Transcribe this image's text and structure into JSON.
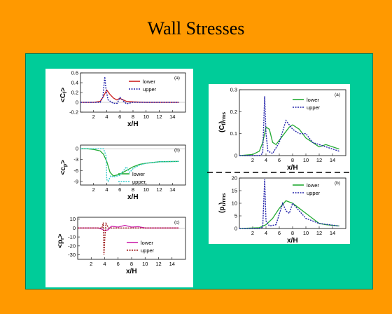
{
  "slide": {
    "title": "Wall Stresses"
  },
  "colors": {
    "background": "#FF9900",
    "panel": "#00CC99"
  },
  "chart_data": [
    {
      "id": "left-a",
      "type": "line",
      "panel_label": "(a)",
      "title": "",
      "xlabel": "x/H",
      "ylabel": "<C_f>",
      "xlim": [
        0,
        16
      ],
      "ylim": [
        -0.2,
        0.6
      ],
      "xticks": [
        "2",
        "4",
        "6",
        "8",
        "10",
        "12",
        "14"
      ],
      "yticks": [
        "-0.2",
        "0",
        "0.2",
        "0.4",
        "0.6"
      ],
      "series": [
        {
          "name": "lower",
          "color": "#cc2222",
          "style": "solid",
          "points": [
            [
              0,
              0
            ],
            [
              1,
              0
            ],
            [
              2,
              0
            ],
            [
              3,
              0.02
            ],
            [
              3.5,
              0.12
            ],
            [
              4,
              0.25
            ],
            [
              4.5,
              0.16
            ],
            [
              5,
              0.09
            ],
            [
              5.5,
              0.05
            ],
            [
              6,
              0.08
            ],
            [
              6.5,
              0.05
            ],
            [
              7,
              0.02
            ],
            [
              8,
              0.01
            ],
            [
              10,
              0
            ],
            [
              12,
              0
            ],
            [
              15,
              0
            ]
          ]
        },
        {
          "name": "upper",
          "color": "#2222aa",
          "style": "dotted",
          "points": [
            [
              0,
              0
            ],
            [
              2,
              0
            ],
            [
              3,
              0
            ],
            [
              3.4,
              0.1
            ],
            [
              3.7,
              0.52
            ],
            [
              3.9,
              0.25
            ],
            [
              4.2,
              0.05
            ],
            [
              5,
              -0.02
            ],
            [
              5.6,
              -0.02
            ],
            [
              6,
              0.1
            ],
            [
              6.5,
              0.03
            ],
            [
              7,
              -0.03
            ],
            [
              8,
              0
            ],
            [
              10,
              0
            ],
            [
              15,
              0
            ]
          ]
        }
      ]
    },
    {
      "id": "left-b",
      "type": "line",
      "panel_label": "(b)",
      "title": "",
      "xlabel": "x/H",
      "ylabel": "<c_p>",
      "xlim": [
        0,
        16
      ],
      "ylim": [
        -10,
        1
      ],
      "xticks": [
        "2",
        "4",
        "6",
        "8",
        "10",
        "12",
        "14"
      ],
      "yticks": [
        "0",
        "-3",
        "-6",
        "-9"
      ],
      "series": [
        {
          "name": "lower",
          "color": "#22aa33",
          "style": "solid",
          "points": [
            [
              0,
              0
            ],
            [
              1,
              0
            ],
            [
              2,
              -0.2
            ],
            [
              3,
              -0.6
            ],
            [
              3.5,
              -1.5
            ],
            [
              4,
              -3.5
            ],
            [
              4.5,
              -6.5
            ],
            [
              5,
              -7.5
            ],
            [
              6,
              -7
            ],
            [
              7,
              -6
            ],
            [
              8,
              -5
            ],
            [
              9,
              -4.3
            ],
            [
              10,
              -4
            ],
            [
              12,
              -3.6
            ],
            [
              15,
              -3.5
            ]
          ]
        },
        {
          "name": "upper",
          "color": "#33cccc",
          "style": "dotted",
          "points": [
            [
              0,
              0
            ],
            [
              2,
              0
            ],
            [
              3.5,
              0
            ],
            [
              3.9,
              -2
            ],
            [
              4,
              -8.5
            ],
            [
              4.2,
              -9
            ],
            [
              4.6,
              -7.5
            ],
            [
              5,
              -7.8
            ],
            [
              6,
              -7.3
            ],
            [
              7,
              -5
            ],
            [
              7.5,
              -6.5
            ],
            [
              8,
              -5.5
            ],
            [
              9,
              -4.5
            ],
            [
              10,
              -4
            ],
            [
              12,
              -3.6
            ],
            [
              15,
              -3.5
            ]
          ]
        }
      ]
    },
    {
      "id": "left-c",
      "type": "line",
      "panel_label": "(c)",
      "title": "",
      "xlabel": "x/H",
      "ylabel": "<p_r>",
      "xlim": [
        0,
        16
      ],
      "ylim": [
        -35,
        12
      ],
      "xticks": [
        "2",
        "4",
        "6",
        "8",
        "10",
        "12",
        "14"
      ],
      "yticks": [
        "10",
        "0",
        "-10",
        "-20",
        "-30"
      ],
      "series": [
        {
          "name": "lower",
          "color": "#cc22aa",
          "style": "solid",
          "points": [
            [
              0,
              0
            ],
            [
              2,
              0
            ],
            [
              3,
              0
            ],
            [
              3.5,
              -1
            ],
            [
              4,
              -3
            ],
            [
              4.5,
              -2
            ],
            [
              5,
              2
            ],
            [
              6,
              1
            ],
            [
              7,
              3
            ],
            [
              8,
              1
            ],
            [
              9,
              1.5
            ],
            [
              10,
              0
            ],
            [
              12,
              0
            ],
            [
              15,
              0
            ]
          ]
        },
        {
          "name": "upper",
          "color": "#991111",
          "style": "dotted",
          "points": [
            [
              0,
              0
            ],
            [
              3,
              0
            ],
            [
              3.6,
              0
            ],
            [
              3.8,
              6
            ],
            [
              3.9,
              -30
            ],
            [
              4.05,
              -8
            ],
            [
              4.2,
              5
            ],
            [
              4.6,
              0
            ],
            [
              6,
              0
            ],
            [
              8,
              0
            ],
            [
              15,
              0
            ]
          ]
        }
      ]
    },
    {
      "id": "right-a",
      "type": "line",
      "panel_label": "(a)",
      "title": "",
      "xlabel": "x/H",
      "ylabel": "(C_f)_rms",
      "xlim": [
        0,
        16
      ],
      "ylim": [
        0,
        0.3
      ],
      "xticks": [
        "2",
        "4",
        "6",
        "8",
        "10",
        "12",
        "14"
      ],
      "yticks": [
        "0",
        "0.1",
        "0.2",
        "0.3"
      ],
      "series": [
        {
          "name": "lower",
          "color": "#22aa33",
          "style": "solid",
          "points": [
            [
              0,
              0
            ],
            [
              2,
              0.005
            ],
            [
              3,
              0.02
            ],
            [
              3.5,
              0.06
            ],
            [
              4,
              0.13
            ],
            [
              4.5,
              0.12
            ],
            [
              5,
              0.06
            ],
            [
              5.5,
              0.05
            ],
            [
              6.5,
              0.09
            ],
            [
              7.5,
              0.13
            ],
            [
              8,
              0.14
            ],
            [
              9,
              0.12
            ],
            [
              10,
              0.08
            ],
            [
              12,
              0.04
            ],
            [
              13,
              0.05
            ],
            [
              15,
              0.03
            ]
          ]
        },
        {
          "name": "upper",
          "color": "#2222aa",
          "style": "dotted",
          "points": [
            [
              0,
              0
            ],
            [
              3,
              0
            ],
            [
              3.5,
              0.01
            ],
            [
              3.8,
              0.27
            ],
            [
              4,
              0.1
            ],
            [
              4.3,
              0.02
            ],
            [
              5,
              0.01
            ],
            [
              6,
              0.06
            ],
            [
              7,
              0.16
            ],
            [
              8,
              0.12
            ],
            [
              9,
              0.1
            ],
            [
              10,
              0.1
            ],
            [
              11,
              0.06
            ],
            [
              12,
              0.05
            ],
            [
              13,
              0.04
            ],
            [
              15,
              0.02
            ]
          ]
        }
      ]
    },
    {
      "id": "right-b",
      "type": "line",
      "panel_label": "(b)",
      "title": "",
      "xlabel": "x/H",
      "ylabel": "(p_r)_rms",
      "xlim": [
        0,
        16
      ],
      "ylim": [
        0,
        20
      ],
      "xticks": [
        "2",
        "4",
        "6",
        "8",
        "10",
        "12",
        "14"
      ],
      "yticks": [
        "0",
        "5",
        "10",
        "15",
        "20"
      ],
      "series": [
        {
          "name": "lower",
          "color": "#22aa33",
          "style": "solid",
          "points": [
            [
              0,
              0
            ],
            [
              3,
              0.3
            ],
            [
              4,
              1.5
            ],
            [
              5,
              4
            ],
            [
              6,
              8
            ],
            [
              7,
              11
            ],
            [
              8,
              10
            ],
            [
              9,
              8
            ],
            [
              10,
              6
            ],
            [
              11,
              4
            ],
            [
              12,
              2
            ],
            [
              13,
              1.5
            ],
            [
              15,
              1
            ]
          ]
        },
        {
          "name": "upper",
          "color": "#2222aa",
          "style": "dotted",
          "points": [
            [
              0,
              0
            ],
            [
              3,
              0
            ],
            [
              3.5,
              0.5
            ],
            [
              3.8,
              19.5
            ],
            [
              4,
              3
            ],
            [
              4.5,
              1
            ],
            [
              5.5,
              1.5
            ],
            [
              6.5,
              10
            ],
            [
              7,
              7
            ],
            [
              7.5,
              6
            ],
            [
              8,
              10
            ],
            [
              9,
              7
            ],
            [
              10,
              4
            ],
            [
              11,
              3
            ],
            [
              12,
              2
            ],
            [
              15,
              1
            ]
          ]
        }
      ]
    }
  ]
}
